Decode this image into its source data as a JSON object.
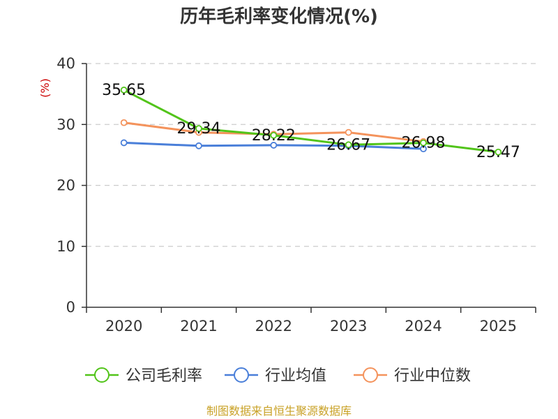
{
  "chart_data": {
    "type": "line",
    "title": "历年毛利率变化情况(%)",
    "xlabel": "",
    "ylabel": "(%)",
    "ylim": [
      0,
      40
    ],
    "yticks": [
      0,
      10,
      20,
      30,
      40
    ],
    "categories": [
      "2020",
      "2021",
      "2022",
      "2023",
      "2024",
      "2025"
    ],
    "series": [
      {
        "name": "公司毛利率",
        "color": "#52c41a",
        "values": [
          35.65,
          29.34,
          28.22,
          26.67,
          26.98,
          25.47
        ],
        "labels": [
          "35.65",
          "29.34",
          "28.22",
          "26.67",
          "26.98",
          "25.47"
        ]
      },
      {
        "name": "行业均值",
        "color": "#4a7fd9",
        "values": [
          27.0,
          26.5,
          26.6,
          26.5,
          26.0,
          null
        ],
        "labels": []
      },
      {
        "name": "行业中位数",
        "color": "#f4935c",
        "values": [
          30.3,
          28.7,
          28.4,
          28.7,
          27.2,
          null
        ],
        "labels": []
      }
    ],
    "grid": true,
    "legend_position": "bottom",
    "source": "制图数据来自恒生聚源数据库"
  }
}
